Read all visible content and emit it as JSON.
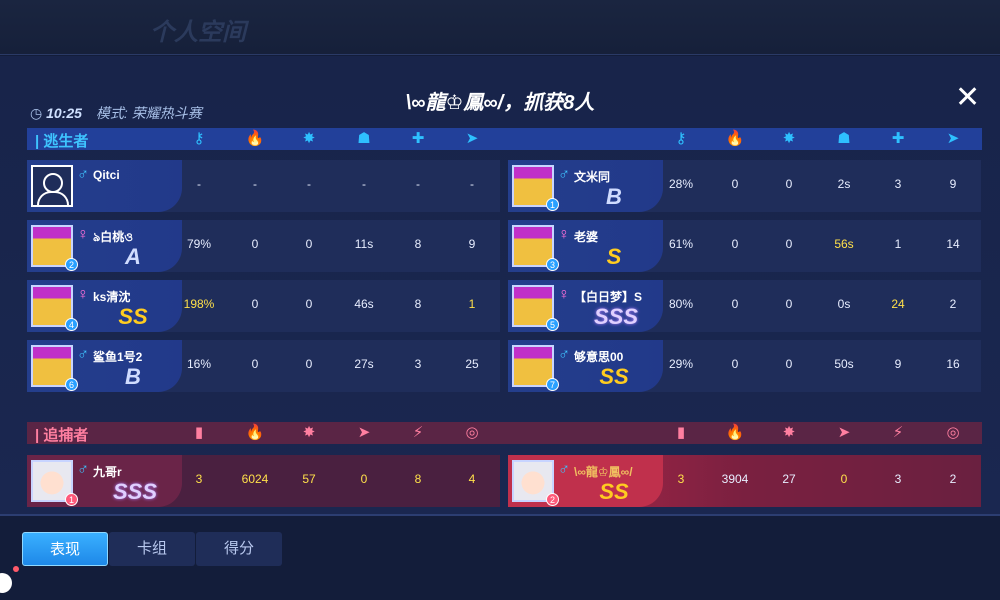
{
  "top": {
    "blurred_title": "个人空间"
  },
  "header": {
    "time": "10:25",
    "mode": "模式: 荣耀热斗赛",
    "title": "\\∞龍♔鳳∞/，抓获8人",
    "close_icon": "close-icon"
  },
  "survivors": {
    "label": "逃生者",
    "columns": [
      "key-icon",
      "fire-icon",
      "knockdown-icon",
      "rescued-icon",
      "medkit-icon",
      "rescue-icon"
    ],
    "players": [
      {
        "name": "Qitci",
        "sex": "male",
        "slot": null,
        "grade": "",
        "values": [
          "-",
          "-",
          "-",
          "-",
          "-",
          "-"
        ],
        "highlight": []
      },
      {
        "name": "文米同",
        "sex": "male",
        "slot": "1",
        "grade": "B",
        "values": [
          "28%",
          "0",
          "0",
          "2s",
          "3",
          "9"
        ],
        "highlight": []
      },
      {
        "name": "ঌ白桃ও",
        "sex": "female",
        "slot": "2",
        "grade": "A",
        "values": [
          "79%",
          "0",
          "0",
          "11s",
          "8",
          "9"
        ],
        "highlight": []
      },
      {
        "name": "老婆",
        "sex": "female",
        "slot": "3",
        "grade": "S",
        "values": [
          "61%",
          "0",
          "0",
          "56s",
          "1",
          "14"
        ],
        "highlight": [
          3
        ]
      },
      {
        "name": "ks清沈",
        "sex": "female",
        "slot": "4",
        "grade": "SS",
        "values": [
          "198%",
          "0",
          "0",
          "46s",
          "8",
          "1"
        ],
        "highlight": [
          0,
          5
        ]
      },
      {
        "name": "【白日梦】S",
        "sex": "female",
        "slot": "5",
        "grade": "SSS",
        "values": [
          "80%",
          "0",
          "0",
          "0s",
          "24",
          "2"
        ],
        "highlight": [
          4
        ]
      },
      {
        "name": "鲨鱼1号2",
        "sex": "male",
        "slot": "6",
        "grade": "B",
        "values": [
          "16%",
          "0",
          "0",
          "27s",
          "3",
          "25"
        ],
        "highlight": []
      },
      {
        "name": "够意思00",
        "sex": "male",
        "slot": "7",
        "grade": "SS",
        "values": [
          "29%",
          "0",
          "0",
          "50s",
          "9",
          "16"
        ],
        "highlight": []
      }
    ]
  },
  "hunters": {
    "label": "追捕者",
    "columns": [
      "door-icon",
      "fire-icon",
      "knockdown-icon",
      "chase-icon",
      "claw-icon",
      "target-icon"
    ],
    "players": [
      {
        "name": "九哥r",
        "sex": "male",
        "slot": "1",
        "grade": "SSS",
        "values": [
          "3",
          "6024",
          "57",
          "0",
          "8",
          "4"
        ],
        "highlight": [
          0,
          1,
          2,
          3,
          4,
          5
        ]
      },
      {
        "name": "\\∞龍♔鳳∞/",
        "sex": "male",
        "slot": "2",
        "grade": "SS",
        "values": [
          "3",
          "3904",
          "27",
          "0",
          "3",
          "2"
        ],
        "highlight": [
          0,
          3
        ],
        "self": true
      }
    ]
  },
  "tabs": [
    {
      "label": "表现",
      "active": true
    },
    {
      "label": "卡组",
      "active": false
    },
    {
      "label": "得分",
      "active": false
    }
  ],
  "colors": {
    "survivor_accent": "#2ec0ff",
    "hunter_accent": "#ff7fa0",
    "highlight": "#ffe04a",
    "active_tab": "#2a9cf5"
  }
}
